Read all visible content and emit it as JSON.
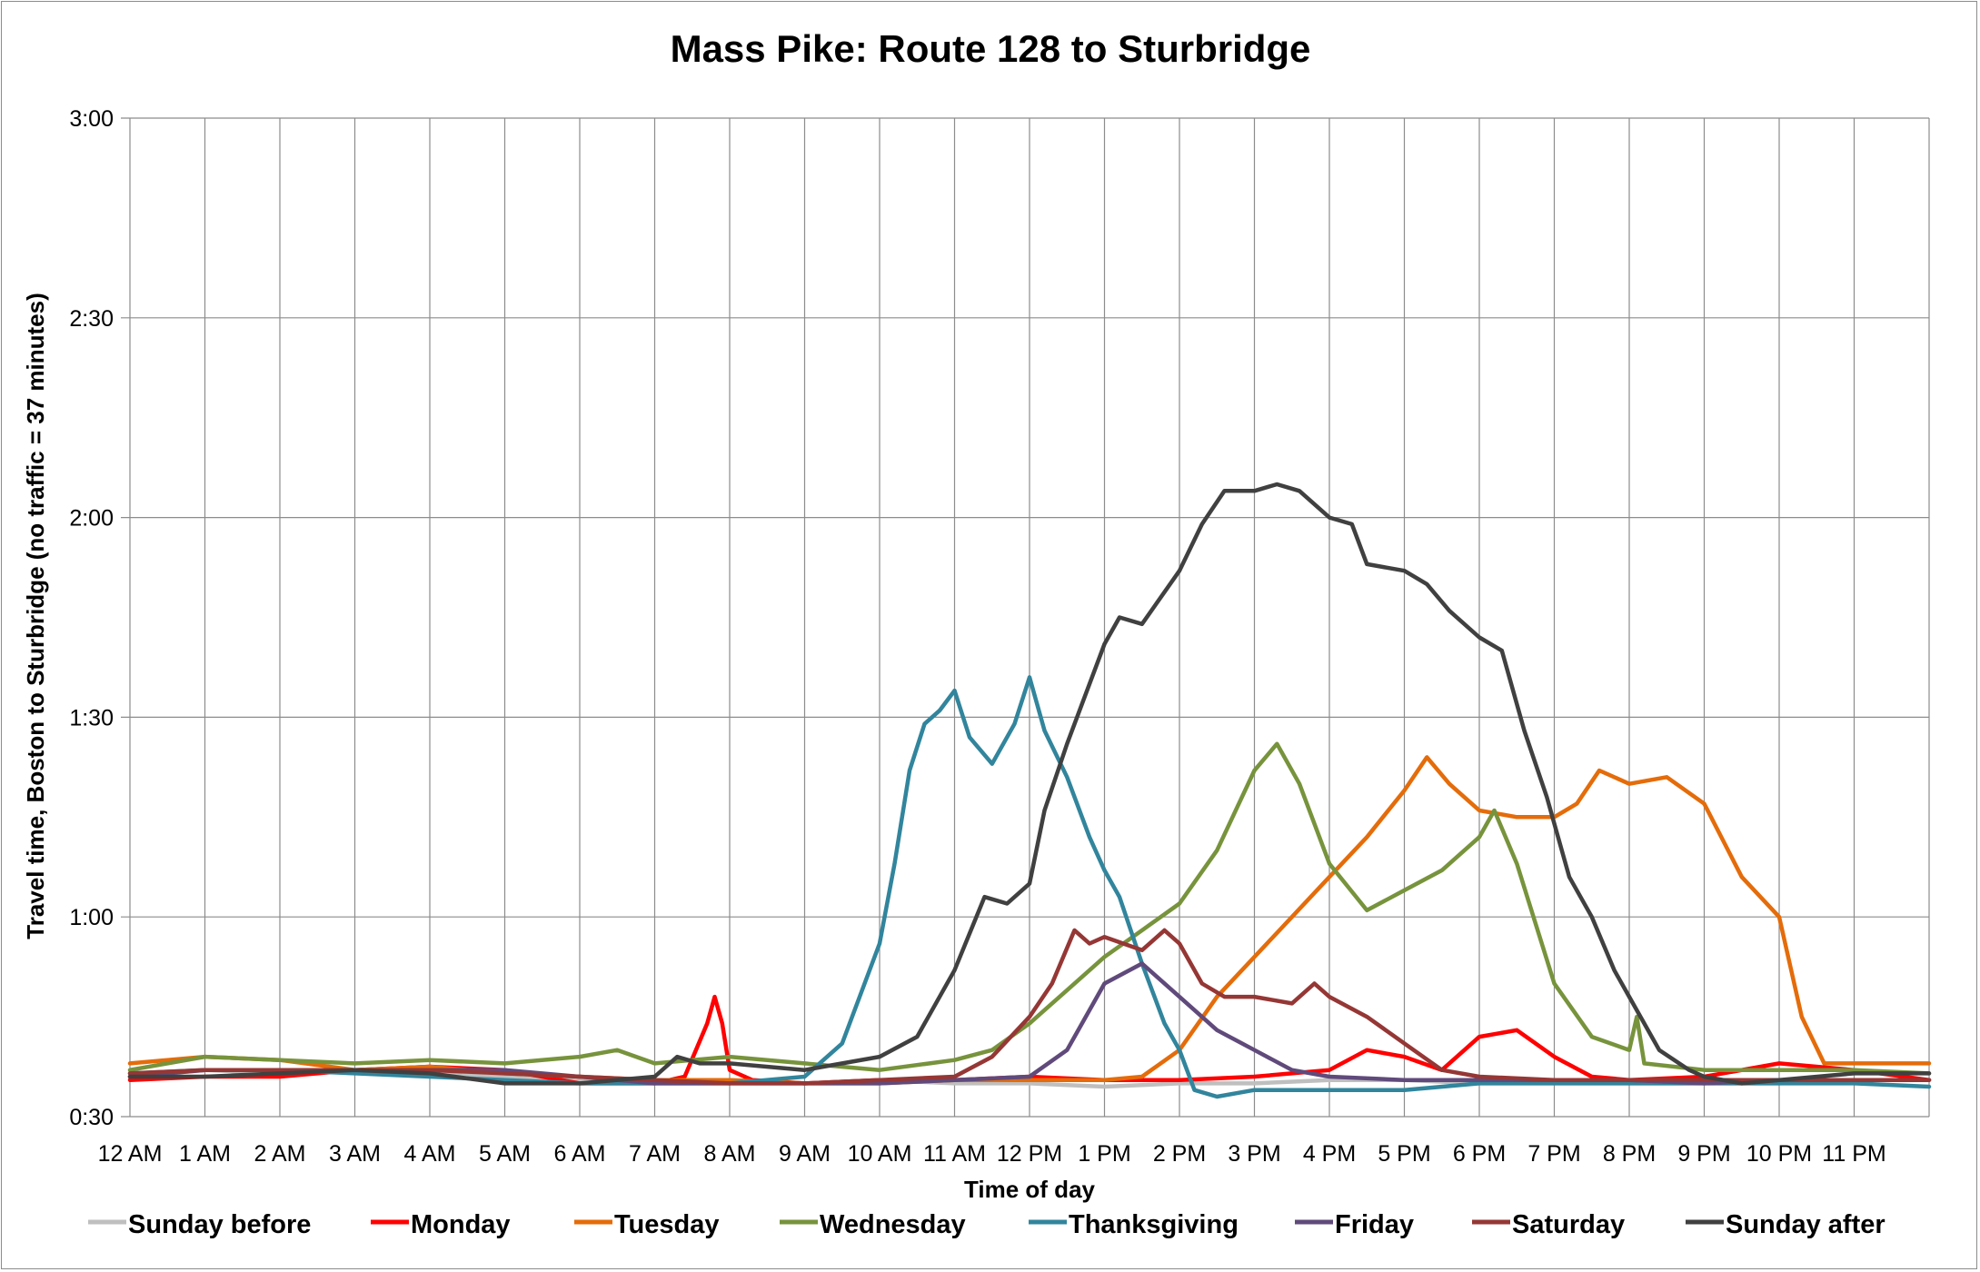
{
  "chart_data": {
    "type": "line",
    "title": "Mass Pike: Route 128 to Sturbridge",
    "xlabel": "Time of day",
    "ylabel": "Travel time, Boston to Sturbridge (no traffic = 37 minutes)",
    "xlim": [
      0,
      24
    ],
    "ylim": [
      30,
      180
    ],
    "x_tick_labels": [
      "12 AM",
      "1 AM",
      "2 AM",
      "3 AM",
      "4 AM",
      "5 AM",
      "6 AM",
      "7 AM",
      "8 AM",
      "9 AM",
      "10 AM",
      "11 AM",
      "12 PM",
      "1 PM",
      "2 PM",
      "3 PM",
      "4 PM",
      "5 PM",
      "6 PM",
      "7 PM",
      "8 PM",
      "9 PM",
      "10 PM",
      "11 PM"
    ],
    "y_ticks": [
      30,
      60,
      90,
      120,
      150,
      180
    ],
    "y_tick_labels": [
      "0:30",
      "1:00",
      "1:30",
      "2:00",
      "2:30",
      "3:00"
    ],
    "x_units": "hours after midnight",
    "y_units": "minutes",
    "grid": true,
    "legend_position": "bottom",
    "series": [
      {
        "name": "Sunday before",
        "color": "#bfbfbf",
        "points": [
          [
            0,
            36
          ],
          [
            1,
            37
          ],
          [
            2,
            36.5
          ],
          [
            3,
            37
          ],
          [
            4,
            36.5
          ],
          [
            5,
            36
          ],
          [
            6,
            35.5
          ],
          [
            7,
            35
          ],
          [
            8,
            35.5
          ],
          [
            9,
            35
          ],
          [
            10,
            35.5
          ],
          [
            11,
            35
          ],
          [
            12,
            35
          ],
          [
            13,
            34.5
          ],
          [
            14,
            35
          ],
          [
            15,
            35
          ],
          [
            16,
            35.5
          ],
          [
            17,
            35.5
          ],
          [
            18,
            35
          ],
          [
            19,
            35
          ],
          [
            20,
            35
          ],
          [
            21,
            35
          ],
          [
            22,
            35
          ],
          [
            23,
            35.5
          ],
          [
            24,
            35.5
          ]
        ]
      },
      {
        "name": "Monday",
        "color": "#ff0000",
        "points": [
          [
            0,
            35.5
          ],
          [
            1,
            36
          ],
          [
            2,
            36
          ],
          [
            3,
            37
          ],
          [
            4,
            37.5
          ],
          [
            5,
            37
          ],
          [
            6,
            35
          ],
          [
            7,
            35
          ],
          [
            7.4,
            36
          ],
          [
            7.7,
            44
          ],
          [
            7.8,
            48
          ],
          [
            7.9,
            44
          ],
          [
            8,
            37
          ],
          [
            8.3,
            35.5
          ],
          [
            9,
            35
          ],
          [
            10,
            35.5
          ],
          [
            11,
            35.5
          ],
          [
            12,
            36
          ],
          [
            13,
            35.5
          ],
          [
            14,
            35.5
          ],
          [
            15,
            36
          ],
          [
            16,
            37
          ],
          [
            16.5,
            40
          ],
          [
            17,
            39
          ],
          [
            17.5,
            37
          ],
          [
            18,
            42
          ],
          [
            18.5,
            43
          ],
          [
            19,
            39
          ],
          [
            19.5,
            36
          ],
          [
            20,
            35.5
          ],
          [
            21,
            36
          ],
          [
            22,
            38
          ],
          [
            23,
            37
          ],
          [
            24,
            35.5
          ]
        ]
      },
      {
        "name": "Tuesday",
        "color": "#e46c0a",
        "points": [
          [
            0,
            38
          ],
          [
            1,
            39
          ],
          [
            2,
            38.5
          ],
          [
            3,
            37
          ],
          [
            4,
            37.5
          ],
          [
            5,
            36.5
          ],
          [
            6,
            36
          ],
          [
            7,
            35.5
          ],
          [
            8,
            35.5
          ],
          [
            9,
            35
          ],
          [
            10,
            35
          ],
          [
            11,
            35.5
          ],
          [
            12,
            35.5
          ],
          [
            13,
            35.5
          ],
          [
            13.5,
            36
          ],
          [
            14,
            40
          ],
          [
            14.5,
            48
          ],
          [
            15,
            54
          ],
          [
            15.5,
            60
          ],
          [
            16,
            66
          ],
          [
            16.5,
            72
          ],
          [
            17,
            79
          ],
          [
            17.3,
            84
          ],
          [
            17.6,
            80
          ],
          [
            18,
            76
          ],
          [
            18.5,
            75
          ],
          [
            19,
            75
          ],
          [
            19.3,
            77
          ],
          [
            19.6,
            82
          ],
          [
            20,
            80
          ],
          [
            20.5,
            81
          ],
          [
            21,
            77
          ],
          [
            21.5,
            66
          ],
          [
            22,
            60
          ],
          [
            22.3,
            45
          ],
          [
            22.6,
            38
          ],
          [
            23,
            38
          ],
          [
            24,
            38
          ]
        ]
      },
      {
        "name": "Wednesday",
        "color": "#77933c",
        "points": [
          [
            0,
            37
          ],
          [
            1,
            39
          ],
          [
            2,
            38.5
          ],
          [
            3,
            38
          ],
          [
            4,
            38.5
          ],
          [
            5,
            38
          ],
          [
            6,
            39
          ],
          [
            6.5,
            40
          ],
          [
            7,
            38
          ],
          [
            8,
            39
          ],
          [
            9,
            38
          ],
          [
            10,
            37
          ],
          [
            11,
            38.5
          ],
          [
            11.5,
            40
          ],
          [
            12,
            44
          ],
          [
            12.5,
            49
          ],
          [
            13,
            54
          ],
          [
            13.5,
            58
          ],
          [
            14,
            62
          ],
          [
            14.5,
            70
          ],
          [
            15,
            82
          ],
          [
            15.3,
            86
          ],
          [
            15.6,
            80
          ],
          [
            16,
            68
          ],
          [
            16.5,
            61
          ],
          [
            17,
            64
          ],
          [
            17.5,
            67
          ],
          [
            18,
            72
          ],
          [
            18.2,
            76
          ],
          [
            18.5,
            68
          ],
          [
            19,
            50
          ],
          [
            19.5,
            42
          ],
          [
            20,
            40
          ],
          [
            20.1,
            45
          ],
          [
            20.2,
            38
          ],
          [
            21,
            37
          ],
          [
            22,
            37
          ],
          [
            23,
            37
          ],
          [
            24,
            36.5
          ]
        ]
      },
      {
        "name": "Thanksgiving",
        "color": "#31859c",
        "points": [
          [
            0,
            36.5
          ],
          [
            1,
            37
          ],
          [
            2,
            37
          ],
          [
            3,
            36.5
          ],
          [
            4,
            36
          ],
          [
            5,
            35.5
          ],
          [
            6,
            35
          ],
          [
            7,
            35
          ],
          [
            8,
            35
          ],
          [
            9,
            36
          ],
          [
            9.5,
            41
          ],
          [
            10,
            56
          ],
          [
            10.2,
            68
          ],
          [
            10.4,
            82
          ],
          [
            10.6,
            89
          ],
          [
            10.8,
            91
          ],
          [
            11,
            94
          ],
          [
            11.2,
            87
          ],
          [
            11.5,
            83
          ],
          [
            11.8,
            89
          ],
          [
            12,
            96
          ],
          [
            12.2,
            88
          ],
          [
            12.5,
            81
          ],
          [
            12.8,
            72
          ],
          [
            13,
            67
          ],
          [
            13.2,
            63
          ],
          [
            13.5,
            53
          ],
          [
            13.8,
            44
          ],
          [
            14,
            40
          ],
          [
            14.2,
            34
          ],
          [
            14.5,
            33
          ],
          [
            15,
            34
          ],
          [
            16,
            34
          ],
          [
            17,
            34
          ],
          [
            18,
            35
          ],
          [
            19,
            35
          ],
          [
            20,
            35
          ],
          [
            21,
            35
          ],
          [
            22,
            35
          ],
          [
            23,
            35
          ],
          [
            24,
            34.5
          ]
        ]
      },
      {
        "name": "Friday",
        "color": "#604a7b",
        "points": [
          [
            0,
            36
          ],
          [
            1,
            37
          ],
          [
            2,
            37
          ],
          [
            3,
            37
          ],
          [
            4,
            37
          ],
          [
            5,
            37
          ],
          [
            6,
            36
          ],
          [
            7,
            35
          ],
          [
            8,
            35
          ],
          [
            9,
            35
          ],
          [
            10,
            35
          ],
          [
            11,
            35.5
          ],
          [
            12,
            36
          ],
          [
            12.5,
            40
          ],
          [
            13,
            50
          ],
          [
            13.5,
            53
          ],
          [
            14,
            48
          ],
          [
            14.5,
            43
          ],
          [
            15,
            40
          ],
          [
            15.5,
            37
          ],
          [
            16,
            36
          ],
          [
            17,
            35.5
          ],
          [
            18,
            35.5
          ],
          [
            19,
            35.5
          ],
          [
            20,
            35.5
          ],
          [
            21,
            35
          ],
          [
            22,
            35.5
          ],
          [
            23,
            35.5
          ],
          [
            24,
            35.5
          ]
        ]
      },
      {
        "name": "Saturday",
        "color": "#953735",
        "points": [
          [
            0,
            36.5
          ],
          [
            1,
            37
          ],
          [
            2,
            37
          ],
          [
            3,
            37
          ],
          [
            4,
            37
          ],
          [
            5,
            36.5
          ],
          [
            6,
            36
          ],
          [
            7,
            35.5
          ],
          [
            8,
            35
          ],
          [
            9,
            35
          ],
          [
            10,
            35.5
          ],
          [
            11,
            36
          ],
          [
            11.5,
            39
          ],
          [
            12,
            45
          ],
          [
            12.3,
            50
          ],
          [
            12.6,
            58
          ],
          [
            12.8,
            56
          ],
          [
            13,
            57
          ],
          [
            13.5,
            55
          ],
          [
            13.8,
            58
          ],
          [
            14,
            56
          ],
          [
            14.3,
            50
          ],
          [
            14.6,
            48
          ],
          [
            15,
            48
          ],
          [
            15.5,
            47
          ],
          [
            15.8,
            50
          ],
          [
            16,
            48
          ],
          [
            16.5,
            45
          ],
          [
            17,
            41
          ],
          [
            17.5,
            37
          ],
          [
            18,
            36
          ],
          [
            19,
            35.5
          ],
          [
            20,
            35.5
          ],
          [
            21,
            35.5
          ],
          [
            22,
            35.5
          ],
          [
            23,
            35.5
          ],
          [
            24,
            35.5
          ]
        ]
      },
      {
        "name": "Sunday after",
        "color": "#404040",
        "points": [
          [
            0,
            36
          ],
          [
            1,
            36
          ],
          [
            2,
            36.5
          ],
          [
            3,
            37
          ],
          [
            4,
            36.5
          ],
          [
            5,
            35
          ],
          [
            6,
            35
          ],
          [
            7,
            36
          ],
          [
            7.3,
            39
          ],
          [
            7.6,
            38
          ],
          [
            8,
            38
          ],
          [
            9,
            37
          ],
          [
            9.5,
            38
          ],
          [
            10,
            39
          ],
          [
            10.5,
            42
          ],
          [
            11,
            52
          ],
          [
            11.4,
            63
          ],
          [
            11.7,
            62
          ],
          [
            12,
            65
          ],
          [
            12.2,
            76
          ],
          [
            12.5,
            86
          ],
          [
            12.8,
            95
          ],
          [
            13,
            101
          ],
          [
            13.2,
            105
          ],
          [
            13.5,
            104
          ],
          [
            14,
            112
          ],
          [
            14.3,
            119
          ],
          [
            14.6,
            124
          ],
          [
            15,
            124
          ],
          [
            15.3,
            125
          ],
          [
            15.6,
            124
          ],
          [
            16,
            120
          ],
          [
            16.3,
            119
          ],
          [
            16.5,
            113
          ],
          [
            17,
            112
          ],
          [
            17.3,
            110
          ],
          [
            17.6,
            106
          ],
          [
            18,
            102
          ],
          [
            18.3,
            100
          ],
          [
            18.6,
            88
          ],
          [
            18.9,
            78
          ],
          [
            19.2,
            66
          ],
          [
            19.5,
            60
          ],
          [
            19.8,
            52
          ],
          [
            20,
            48
          ],
          [
            20.4,
            40
          ],
          [
            20.8,
            37
          ],
          [
            21,
            36
          ],
          [
            21.5,
            35
          ],
          [
            22,
            35.5
          ],
          [
            23,
            36.5
          ],
          [
            24,
            36.5
          ]
        ]
      }
    ]
  }
}
